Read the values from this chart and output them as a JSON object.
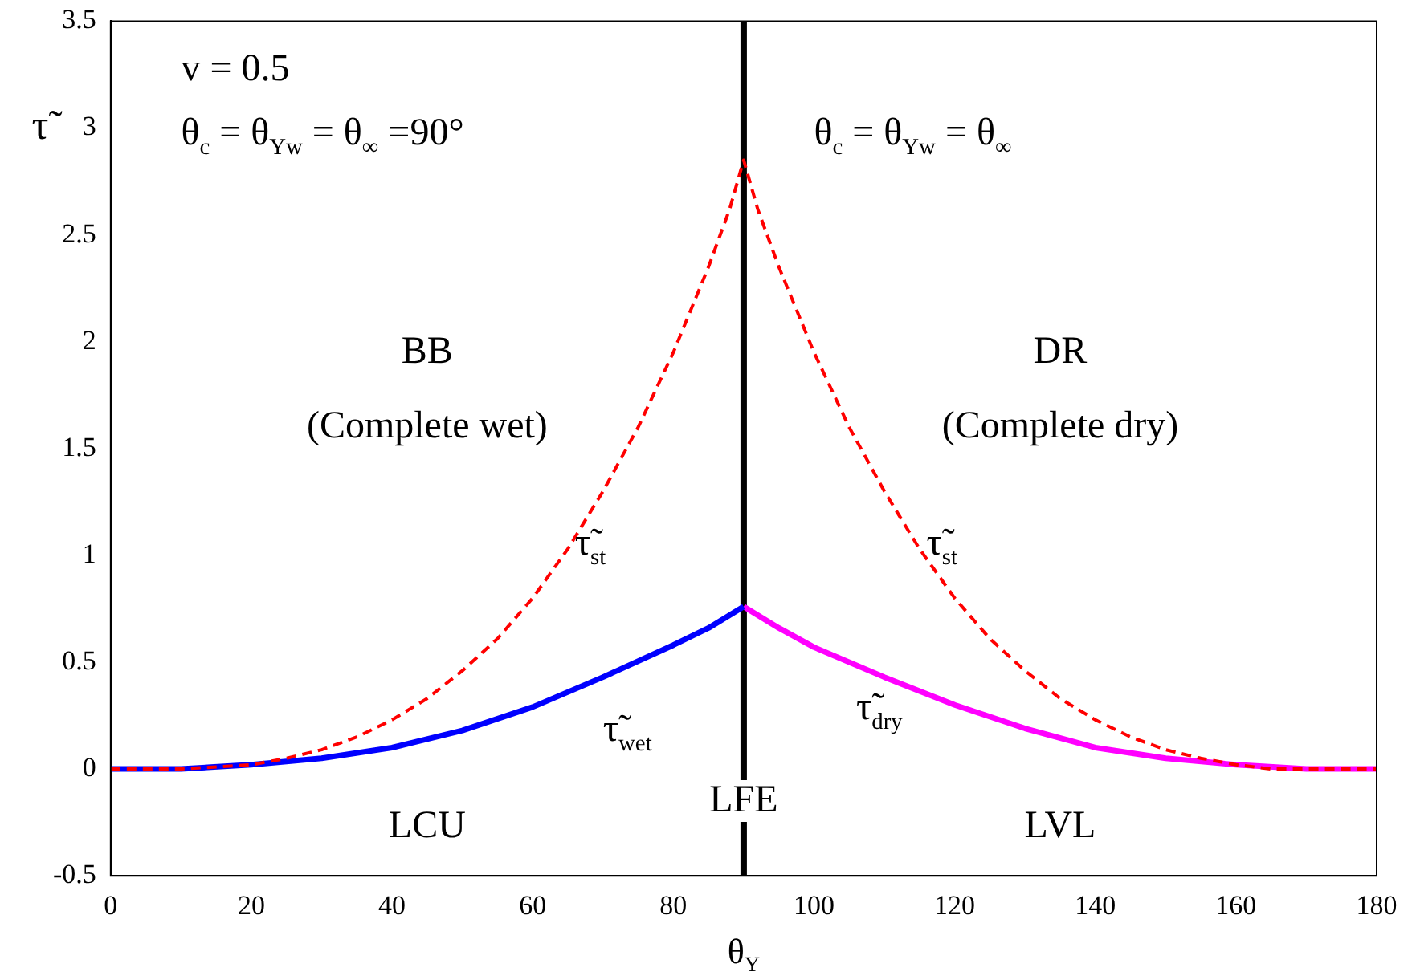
{
  "chart_data": {
    "type": "line",
    "xlabel": "θ$_{Y}$",
    "ylabel": "τ̃",
    "xlim": [
      0,
      180
    ],
    "xticks": [
      0,
      20,
      40,
      60,
      80,
      100,
      120,
      140,
      160,
      180
    ],
    "ylim": [
      -0.5,
      3.5
    ],
    "yticks": [
      -0.5,
      0,
      0.5,
      1,
      1.5,
      2,
      2.5,
      3,
      3.5
    ],
    "grid": false,
    "legend": false,
    "marker": "none",
    "series": [
      {
        "color": "#ff0000",
        "line_style": "dashed",
        "x": [
          0,
          10,
          15,
          20,
          25,
          30,
          35,
          40,
          45,
          50,
          55,
          60,
          65,
          70,
          75,
          80,
          85,
          88,
          90,
          92,
          95,
          100,
          105,
          110,
          115,
          120,
          125,
          130,
          135,
          140,
          145,
          150,
          155,
          160,
          165,
          170,
          180
        ],
        "values": [
          0,
          0,
          0.01,
          0.02,
          0.05,
          0.09,
          0.15,
          0.23,
          0.33,
          0.46,
          0.61,
          0.8,
          1.03,
          1.3,
          1.6,
          1.95,
          2.35,
          2.62,
          2.85,
          2.62,
          2.35,
          1.95,
          1.6,
          1.3,
          1.03,
          0.8,
          0.61,
          0.46,
          0.33,
          0.23,
          0.15,
          0.09,
          0.05,
          0.02,
          0,
          0,
          0
        ]
      },
      {
        "color": "#0000ff",
        "line_style": "solid",
        "x": [
          0,
          10,
          20,
          30,
          40,
          50,
          60,
          70,
          80,
          85,
          90
        ],
        "values": [
          0,
          0,
          0.02,
          0.05,
          0.1,
          0.18,
          0.29,
          0.43,
          0.58,
          0.66,
          0.76
        ]
      },
      {
        "color": "#ff00ff",
        "line_style": "solid",
        "x": [
          90,
          95,
          100,
          110,
          120,
          130,
          140,
          150,
          160,
          170,
          180
        ],
        "values": [
          0.76,
          0.66,
          0.57,
          0.43,
          0.3,
          0.19,
          0.1,
          0.05,
          0.02,
          0,
          0
        ]
      }
    ],
    "ref_lines": [
      {
        "axis": "x",
        "value": 90,
        "color": "#000000",
        "line_style": "solid"
      }
    ],
    "annotations": [
      "v = 0.5",
      "θ$_{c}$ = θ$_{Yw}$ = θ$_{∞}$ =90°",
      "θ$_{c}$ = θ$_{Yw}$ = θ$_{∞}$",
      "BB",
      "(Complete wet)",
      "DR",
      "(Complete dry)",
      "LCU",
      "LFE",
      "LVL",
      "τ̃$_{st}$",
      "τ̃$_{st}$",
      "τ̃$_{wet}$",
      "τ̃$_{dry}$"
    ]
  }
}
